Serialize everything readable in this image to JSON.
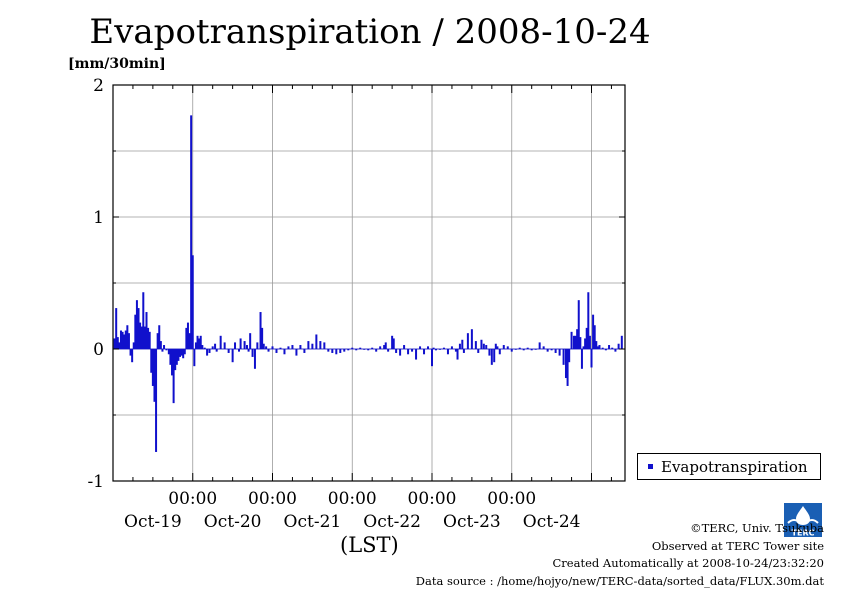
{
  "chart_data": {
    "type": "bar",
    "title": "Evapotranspiration / 2008-10-24",
    "ylabel": "[mm/30min]",
    "xlabel": "(LST)",
    "ylim": [
      -1,
      2
    ],
    "y_ticks": [
      "2",
      "1",
      "0",
      "-1"
    ],
    "x_ticks": [
      {
        "time": "00:00",
        "date": "Oct-20"
      },
      {
        "time": "00:00",
        "date": "Oct-21"
      },
      {
        "time": "00:00",
        "date": "Oct-22"
      },
      {
        "time": "00:00",
        "date": "Oct-23"
      },
      {
        "time": "00:00",
        "date": "Oct-24"
      }
    ],
    "x_day_labels": [
      "Oct-19",
      "Oct-20",
      "Oct-21",
      "Oct-22",
      "Oct-23",
      "Oct-24"
    ],
    "grid": true,
    "legend_position": "bottom-right",
    "series": [
      {
        "name": "Evapotranspiration",
        "color": "#1010cc",
        "x_unit": "days since 2008-10-19 00:00 LST",
        "points": [
          [
            -0.98,
            0.08
          ],
          [
            -0.96,
            0.31
          ],
          [
            -0.94,
            0.09
          ],
          [
            -0.92,
            0.05
          ],
          [
            -0.9,
            0.14
          ],
          [
            -0.88,
            0.13
          ],
          [
            -0.86,
            0.11
          ],
          [
            -0.84,
            0.14
          ],
          [
            -0.82,
            0.18
          ],
          [
            -0.8,
            0.12
          ],
          [
            -0.78,
            -0.05
          ],
          [
            -0.76,
            -0.1
          ],
          [
            -0.74,
            0.05
          ],
          [
            -0.72,
            0.26
          ],
          [
            -0.7,
            0.37
          ],
          [
            -0.68,
            0.31
          ],
          [
            -0.66,
            0.2
          ],
          [
            -0.64,
            0.17
          ],
          [
            -0.62,
            0.43
          ],
          [
            -0.6,
            0.17
          ],
          [
            -0.58,
            0.28
          ],
          [
            -0.56,
            0.16
          ],
          [
            -0.54,
            0.13
          ],
          [
            -0.52,
            -0.18
          ],
          [
            -0.5,
            -0.28
          ],
          [
            -0.48,
            -0.4
          ],
          [
            -0.46,
            -0.78
          ],
          [
            -0.44,
            0.12
          ],
          [
            -0.42,
            0.18
          ],
          [
            -0.4,
            0.06
          ],
          [
            -0.38,
            -0.02
          ],
          [
            -0.36,
            0.03
          ],
          [
            -0.33,
            -0.01
          ],
          [
            -0.3,
            -0.04
          ],
          [
            -0.28,
            -0.12
          ],
          [
            -0.26,
            -0.2
          ],
          [
            -0.24,
            -0.41
          ],
          [
            -0.22,
            -0.16
          ],
          [
            -0.2,
            -0.12
          ],
          [
            -0.18,
            -0.09
          ],
          [
            -0.16,
            -0.06
          ],
          [
            -0.14,
            -0.05
          ],
          [
            -0.12,
            -0.07
          ],
          [
            -0.1,
            -0.04
          ],
          [
            -0.08,
            0.16
          ],
          [
            -0.06,
            0.2
          ],
          [
            -0.04,
            0.12
          ],
          [
            -0.02,
            1.77
          ],
          [
            0.0,
            0.71
          ],
          [
            0.02,
            -0.13
          ],
          [
            0.04,
            0.05
          ],
          [
            0.06,
            0.1
          ],
          [
            0.08,
            0.08
          ],
          [
            0.1,
            0.1
          ],
          [
            0.12,
            0.03
          ],
          [
            0.15,
            0.01
          ],
          [
            0.18,
            -0.05
          ],
          [
            0.21,
            -0.03
          ],
          [
            0.25,
            0.02
          ],
          [
            0.28,
            0.04
          ],
          [
            0.3,
            -0.02
          ],
          [
            0.35,
            0.1
          ],
          [
            0.4,
            0.05
          ],
          [
            0.45,
            -0.03
          ],
          [
            0.5,
            -0.1
          ],
          [
            0.53,
            0.05
          ],
          [
            0.58,
            -0.02
          ],
          [
            0.6,
            0.08
          ],
          [
            0.65,
            0.06
          ],
          [
            0.68,
            0.03
          ],
          [
            0.7,
            -0.02
          ],
          [
            0.72,
            0.12
          ],
          [
            0.75,
            -0.06
          ],
          [
            0.78,
            -0.15
          ],
          [
            0.81,
            0.05
          ],
          [
            0.85,
            0.28
          ],
          [
            0.87,
            0.16
          ],
          [
            0.89,
            0.04
          ],
          [
            0.92,
            0.02
          ],
          [
            0.95,
            -0.02
          ],
          [
            1.0,
            0.02
          ],
          [
            1.05,
            -0.03
          ],
          [
            1.1,
            0.01
          ],
          [
            1.15,
            -0.04
          ],
          [
            1.2,
            0.02
          ],
          [
            1.25,
            0.03
          ],
          [
            1.3,
            -0.05
          ],
          [
            1.35,
            0.03
          ],
          [
            1.4,
            -0.03
          ],
          [
            1.45,
            0.06
          ],
          [
            1.5,
            0.04
          ],
          [
            1.55,
            0.11
          ],
          [
            1.6,
            0.06
          ],
          [
            1.65,
            0.05
          ],
          [
            1.7,
            -0.02
          ],
          [
            1.75,
            -0.03
          ],
          [
            1.8,
            -0.04
          ],
          [
            1.85,
            -0.03
          ],
          [
            1.9,
            -0.02
          ],
          [
            1.95,
            -0.01
          ],
          [
            2.0,
            0.01
          ],
          [
            2.05,
            -0.01
          ],
          [
            2.1,
            0.01
          ],
          [
            2.15,
            0.0
          ],
          [
            2.2,
            -0.01
          ],
          [
            2.25,
            0.01
          ],
          [
            2.3,
            -0.02
          ],
          [
            2.35,
            0.02
          ],
          [
            2.4,
            0.03
          ],
          [
            2.42,
            0.05
          ],
          [
            2.45,
            -0.02
          ],
          [
            2.5,
            0.1
          ],
          [
            2.52,
            0.08
          ],
          [
            2.55,
            -0.03
          ],
          [
            2.6,
            -0.05
          ],
          [
            2.65,
            0.03
          ],
          [
            2.7,
            -0.04
          ],
          [
            2.75,
            -0.02
          ],
          [
            2.8,
            -0.08
          ],
          [
            2.85,
            0.02
          ],
          [
            2.9,
            -0.04
          ],
          [
            2.95,
            0.02
          ],
          [
            3.0,
            -0.13
          ],
          [
            3.02,
            0.01
          ],
          [
            3.05,
            -0.01
          ],
          [
            3.1,
            0.0
          ],
          [
            3.15,
            0.01
          ],
          [
            3.2,
            -0.04
          ],
          [
            3.25,
            0.02
          ],
          [
            3.3,
            -0.02
          ],
          [
            3.32,
            -0.08
          ],
          [
            3.35,
            0.04
          ],
          [
            3.38,
            0.07
          ],
          [
            3.4,
            -0.03
          ],
          [
            3.45,
            0.12
          ],
          [
            3.5,
            0.15
          ],
          [
            3.55,
            0.06
          ],
          [
            3.58,
            -0.03
          ],
          [
            3.62,
            0.07
          ],
          [
            3.65,
            0.04
          ],
          [
            3.68,
            0.03
          ],
          [
            3.72,
            -0.05
          ],
          [
            3.75,
            -0.12
          ],
          [
            3.78,
            -0.1
          ],
          [
            3.8,
            0.04
          ],
          [
            3.82,
            0.02
          ],
          [
            3.85,
            -0.04
          ],
          [
            3.9,
            0.03
          ],
          [
            3.95,
            0.02
          ],
          [
            4.0,
            -0.02
          ],
          [
            4.05,
            0.0
          ],
          [
            4.1,
            0.01
          ],
          [
            4.15,
            -0.01
          ],
          [
            4.2,
            0.01
          ],
          [
            4.25,
            -0.01
          ],
          [
            4.3,
            0.0
          ],
          [
            4.35,
            0.05
          ],
          [
            4.4,
            0.02
          ],
          [
            4.45,
            -0.02
          ],
          [
            4.5,
            -0.01
          ],
          [
            4.55,
            -0.03
          ],
          [
            4.6,
            -0.05
          ],
          [
            4.65,
            -0.12
          ],
          [
            4.68,
            -0.22
          ],
          [
            4.7,
            -0.28
          ],
          [
            4.72,
            -0.1
          ],
          [
            4.75,
            0.13
          ],
          [
            4.78,
            0.1
          ],
          [
            4.8,
            0.1
          ],
          [
            4.82,
            0.15
          ],
          [
            4.84,
            0.37
          ],
          [
            4.86,
            0.09
          ],
          [
            4.88,
            -0.15
          ],
          [
            4.9,
            0.02
          ],
          [
            4.92,
            0.08
          ],
          [
            4.94,
            0.16
          ],
          [
            4.96,
            0.43
          ],
          [
            4.98,
            0.1
          ],
          [
            5.0,
            -0.14
          ],
          [
            5.02,
            0.26
          ],
          [
            5.04,
            0.18
          ],
          [
            5.06,
            0.06
          ],
          [
            5.08,
            0.02
          ],
          [
            5.1,
            0.03
          ],
          [
            5.14,
            0.01
          ],
          [
            5.18,
            -0.01
          ],
          [
            5.22,
            0.03
          ],
          [
            5.26,
            0.01
          ],
          [
            5.3,
            -0.02
          ],
          [
            5.34,
            0.04
          ],
          [
            5.38,
            0.1
          ]
        ]
      }
    ]
  },
  "legend": {
    "label": "Evapotranspiration"
  },
  "credits": {
    "copyright": "©TERC, Univ. Tsukuba",
    "observed": "Observed at TERC Tower site",
    "created": "Created Automatically at 2008-10-24/23:32:20",
    "source": "Data source : /home/hojyo/new/TERC-data/sorted_data/FLUX.30m.dat"
  },
  "logo": {
    "text": "TERC",
    "color": "#1a5fb4"
  }
}
